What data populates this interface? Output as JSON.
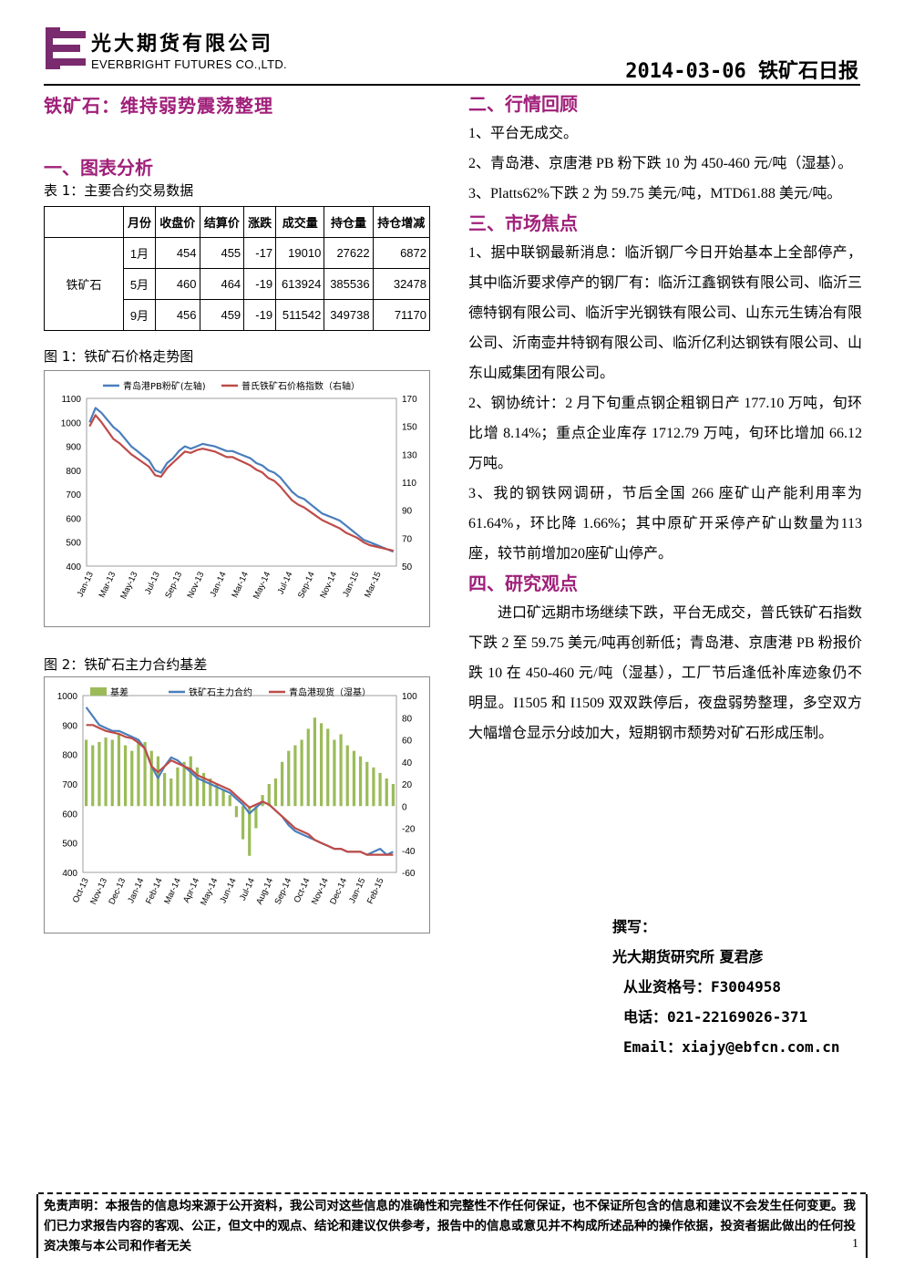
{
  "header": {
    "company_cn": "光大期货有限公司",
    "company_en": "EVERBRIGHT FUTURES CO.,LTD.",
    "report_title": "2014-03-06 铁矿石日报",
    "brand_color": "#7a2a6e"
  },
  "left": {
    "main_title": "铁矿石：维持弱势震荡整理",
    "section1": "一、图表分析",
    "table_caption": "表 1：主要合约交易数据",
    "table": {
      "headers": [
        "",
        "月份",
        "收盘价",
        "结算价",
        "涨跌",
        "成交量",
        "持仓量",
        "持仓增减"
      ],
      "variety": "铁矿石",
      "rows": [
        [
          "1月",
          "454",
          "455",
          "-17",
          "19010",
          "27622",
          "6872"
        ],
        [
          "5月",
          "460",
          "464",
          "-19",
          "613924",
          "385536",
          "32478"
        ],
        [
          "9月",
          "456",
          "459",
          "-19",
          "511542",
          "349738",
          "71170"
        ]
      ]
    },
    "fig1_caption": "图 1：铁矿石价格走势图",
    "fig2_caption": "图 2：铁矿石主力合约基差"
  },
  "right": {
    "section2": "二、行情回顾",
    "s2_items": [
      "1、平台无成交。",
      "2、青岛港、京唐港 PB 粉下跌 10 为 450-460 元/吨（湿基）。",
      "3、Platts62%下跌 2 为 59.75 美元/吨，MTD61.88 美元/吨。"
    ],
    "section3": "三、市场焦点",
    "s3_items": [
      "1、据中联钢最新消息：临沂钢厂今日开始基本上全部停产，其中临沂要求停产的钢厂有：临沂江鑫钢铁有限公司、临沂三德特钢有限公司、临沂宇光钢铁有限公司、山东元生铸冶有限公司、沂南壶井特钢有限公司、临沂亿利达钢铁有限公司、山东山威集团有限公司。",
      "2、钢协统计：2 月下旬重点钢企粗钢日产 177.10 万吨，旬环比增 8.14%；重点企业库存 1712.79 万吨，旬环比增加 66.12 万吨。",
      "3、我的钢铁网调研，节后全国 266 座矿山产能利用率为 61.64%，环比降 1.66%；其中原矿开采停产矿山数量为113座，较节前增加20座矿山停产。"
    ],
    "section4": "四、研究观点",
    "s4_text": "进口矿远期市场继续下跌，平台无成交，普氏铁矿石指数下跌 2 至 59.75 美元/吨再创新低；青岛港、京唐港 PB 粉报价跌 10 在 450-460 元/吨（湿基），工厂节后逢低补库迹象仍不明显。I1505 和 I1509 双双跌停后，夜盘弱势整理，多空双方大幅增仓显示分歧加大，短期钢市颓势对矿石形成压制。"
  },
  "author": {
    "label": "撰写：",
    "org_name": "光大期货研究所 夏君彦",
    "license": "从业资格号：F3004958",
    "phone": "电话：021-22169026-371",
    "email": "Email：xiajy@ebfcn.com.cn"
  },
  "footer": {
    "disclaimer": "免责声明：本报告的信息均来源于公开资料，我公司对这些信息的准确性和完整性不作任何保证，也不保证所包含的信息和建议不会发生任何变更。我们已力求报告内容的客观、公正，但文中的观点、结论和建议仅供参考，报告中的信息或意见并不构成所述品种的操作依据，投资者据此做出的任何投资决策与本公司和作者无关",
    "page": "1"
  },
  "chart_data": [
    {
      "type": "line",
      "legend": [
        "青岛港PB粉矿(左轴)",
        "普氏铁矿石价格指数（右轴）"
      ],
      "x_ticks": [
        "Jan-13",
        "Mar-13",
        "May-13",
        "Jul-13",
        "Sep-13",
        "Nov-13",
        "Jan-14",
        "Mar-14",
        "May-14",
        "Jul-14",
        "Sep-14",
        "Nov-14",
        "Jan-15",
        "Mar-15"
      ],
      "y_left": {
        "min": 400,
        "max": 1100,
        "ticks": [
          400,
          500,
          600,
          700,
          800,
          900,
          1000,
          1100
        ]
      },
      "y_right": {
        "min": 50,
        "max": 170,
        "ticks": [
          50,
          70,
          90,
          110,
          130,
          150,
          170
        ]
      },
      "series": [
        {
          "name": "青岛港PB粉矿(左轴)",
          "axis": "left",
          "color": "#4a7ebb",
          "values": [
            1000,
            1060,
            1040,
            1010,
            980,
            960,
            930,
            900,
            880,
            860,
            840,
            800,
            790,
            830,
            850,
            880,
            900,
            890,
            900,
            910,
            905,
            900,
            890,
            880,
            880,
            870,
            860,
            850,
            830,
            820,
            800,
            790,
            770,
            740,
            710,
            690,
            680,
            660,
            640,
            620,
            610,
            600,
            590,
            570,
            550,
            530,
            510,
            500,
            490,
            480,
            470,
            460
          ]
        },
        {
          "name": "普氏铁矿石价格指数（右轴）",
          "axis": "right",
          "color": "#be4b48",
          "values": [
            150,
            158,
            153,
            147,
            141,
            138,
            134,
            130,
            127,
            124,
            121,
            115,
            114,
            120,
            124,
            128,
            132,
            131,
            133,
            134,
            133,
            132,
            130,
            128,
            128,
            126,
            124,
            122,
            119,
            117,
            113,
            111,
            107,
            102,
            97,
            94,
            92,
            89,
            86,
            83,
            81,
            79,
            77,
            74,
            72,
            70,
            67,
            65,
            64,
            63,
            62,
            61
          ]
        }
      ]
    },
    {
      "type": "bar+line",
      "legend": [
        "基差",
        "铁矿石主力合约",
        "青岛港现货（湿基）"
      ],
      "x_ticks": [
        "Oct-13",
        "Nov-13",
        "Dec-13",
        "Jan-14",
        "Feb-14",
        "Mar-14",
        "Apr-14",
        "May-14",
        "Jun-14",
        "Jul-14",
        "Aug-14",
        "Sep-14",
        "Oct-14",
        "Nov-14",
        "Dec-14",
        "Jan-15",
        "Feb-15"
      ],
      "y_left": {
        "min": 400,
        "max": 1000,
        "ticks": [
          400,
          500,
          600,
          700,
          800,
          900,
          1000
        ]
      },
      "y_right": {
        "min": -60,
        "max": 100,
        "ticks": [
          -60,
          -40,
          -20,
          0,
          20,
          40,
          60,
          80,
          100
        ]
      },
      "series": [
        {
          "name": "基差",
          "axis": "right",
          "color": "#9bbb59",
          "values": [
            60,
            55,
            58,
            62,
            60,
            65,
            55,
            50,
            60,
            58,
            50,
            45,
            30,
            25,
            35,
            40,
            45,
            35,
            30,
            25,
            20,
            15,
            10,
            -10,
            -30,
            -45,
            -20,
            10,
            20,
            25,
            40,
            50,
            55,
            60,
            70,
            80,
            75,
            70,
            60,
            65,
            55,
            50,
            45,
            40,
            35,
            30,
            25,
            20
          ]
        },
        {
          "name": "铁矿石主力合约",
          "axis": "left",
          "color": "#4a7ebb",
          "values": [
            960,
            930,
            900,
            890,
            880,
            880,
            870,
            860,
            850,
            820,
            760,
            720,
            760,
            790,
            780,
            760,
            740,
            720,
            710,
            700,
            690,
            680,
            670,
            650,
            630,
            600,
            620,
            640,
            630,
            610,
            590,
            560,
            540,
            530,
            520,
            510,
            500,
            490,
            480,
            480,
            470,
            470,
            470,
            460,
            470,
            480,
            460,
            470
          ]
        },
        {
          "name": "青岛港现货（湿基）",
          "axis": "left",
          "color": "#be4b48",
          "values": [
            900,
            900,
            890,
            880,
            875,
            870,
            860,
            855,
            840,
            820,
            760,
            740,
            760,
            780,
            770,
            760,
            750,
            730,
            720,
            710,
            700,
            690,
            680,
            660,
            640,
            620,
            630,
            640,
            630,
            610,
            590,
            570,
            550,
            540,
            530,
            510,
            500,
            490,
            480,
            480,
            470,
            470,
            470,
            460,
            460,
            460,
            460,
            460
          ]
        }
      ]
    }
  ]
}
